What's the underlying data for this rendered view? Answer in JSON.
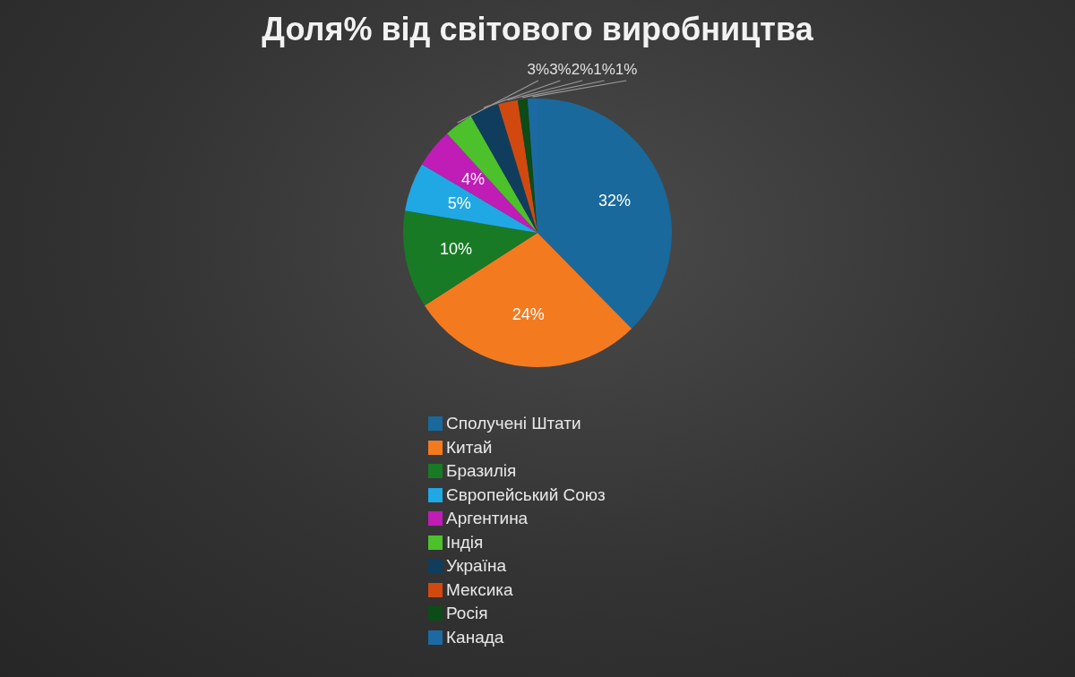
{
  "chart_data": {
    "type": "pie",
    "title": "Доля% від світового виробництва",
    "categories": [
      "Сполучені Штати",
      "Китай",
      "Бразилія",
      "Європейський Союз",
      "Аргентина",
      "Індія",
      "Україна",
      "Мексика",
      "Росія",
      "Канада"
    ],
    "values": [
      32,
      24,
      10,
      5,
      4,
      3,
      3,
      2,
      1,
      1
    ],
    "colors": [
      "#19699c",
      "#f47a20",
      "#197a25",
      "#1fa8e4",
      "#c01cb6",
      "#4cc12c",
      "#103d5d",
      "#d1490f",
      "#0c4c16",
      "#1b6ba2"
    ],
    "value_labels": [
      "32%",
      "24%",
      "10%",
      "5%",
      "4%",
      "3%",
      "3%",
      "2%",
      "1%",
      "1%"
    ],
    "legend": "bottom"
  }
}
